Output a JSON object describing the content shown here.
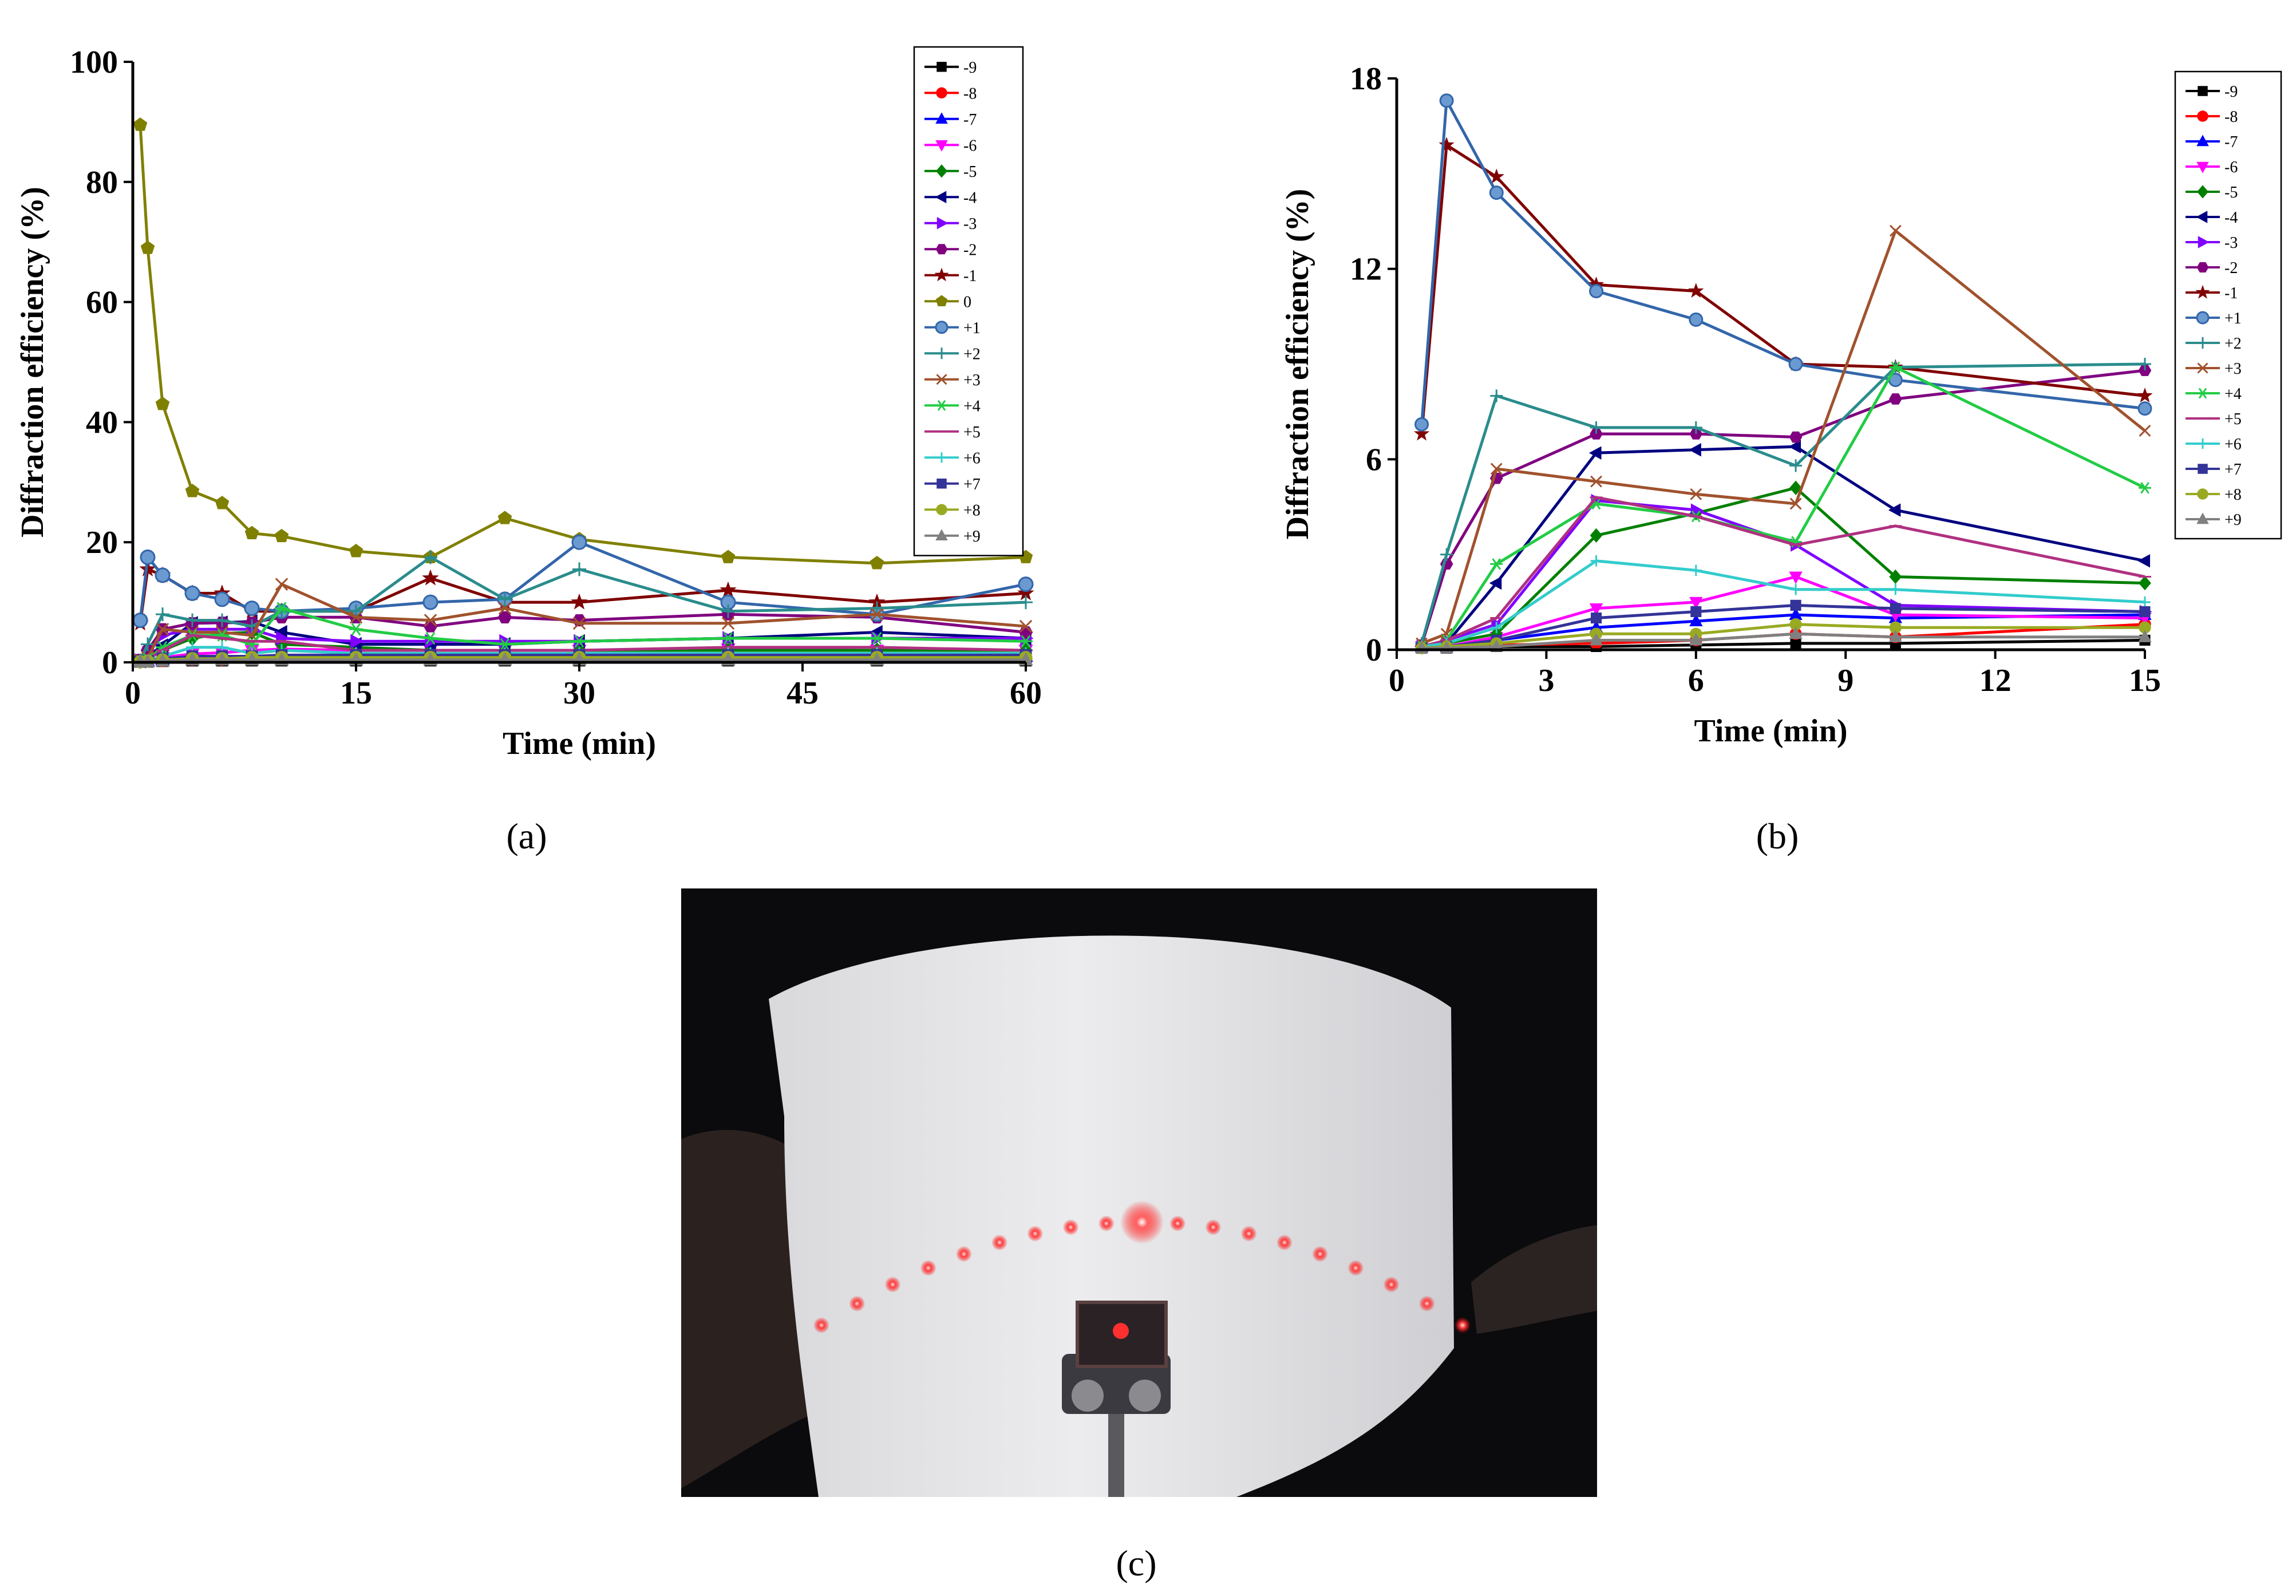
{
  "chart_data": [
    {
      "id": "a",
      "type": "line",
      "panel_label": "(a)",
      "xlabel": "Time (min)",
      "ylabel": "Diffraction efficiency (%)",
      "xlim": [
        0,
        60
      ],
      "ylim": [
        0,
        100
      ],
      "xticks": [
        0,
        15,
        30,
        45,
        60
      ],
      "yticks": [
        0,
        20,
        40,
        60,
        80,
        100
      ],
      "legend_position": "top-right",
      "grid": false,
      "x": [
        0.5,
        1,
        2,
        4,
        6,
        8,
        10,
        15,
        20,
        25,
        30,
        40,
        50,
        60
      ],
      "series": [
        {
          "name": "-9",
          "color": "#000000",
          "marker": "square",
          "values": [
            0.1,
            0.1,
            0.2,
            0.3,
            0.3,
            0.3,
            0.3,
            0.3,
            0.3,
            0.3,
            0.3,
            0.3,
            0.3,
            0.3
          ]
        },
        {
          "name": "-8",
          "color": "#ff0000",
          "marker": "circle",
          "values": [
            0.1,
            0.2,
            0.3,
            0.5,
            0.5,
            0.6,
            0.6,
            0.6,
            0.6,
            0.6,
            0.6,
            0.6,
            0.6,
            0.6
          ]
        },
        {
          "name": "-7",
          "color": "#0000ff",
          "marker": "triangle-up",
          "values": [
            0.1,
            0.3,
            0.5,
            0.8,
            0.9,
            1.0,
            1.0,
            1.0,
            1.0,
            1.0,
            1.0,
            1.0,
            1.0,
            1.0
          ]
        },
        {
          "name": "-6",
          "color": "#ff00ff",
          "marker": "triangle-down",
          "values": [
            0.2,
            0.4,
            0.8,
            1.4,
            1.6,
            2.0,
            2.2,
            2.0,
            2.0,
            2.0,
            2.0,
            2.2,
            2.0,
            2.0
          ]
        },
        {
          "name": "-5",
          "color": "#008000",
          "marker": "diamond",
          "values": [
            0.2,
            0.8,
            2.0,
            4.0,
            4.8,
            5.0,
            3.0,
            2.5,
            2.0,
            2.0,
            2.0,
            2.0,
            2.0,
            2.0
          ]
        },
        {
          "name": "-4",
          "color": "#000080",
          "marker": "triangle-left",
          "values": [
            0.2,
            1.0,
            2.8,
            6.5,
            6.6,
            6.8,
            5.0,
            3.0,
            3.0,
            3.0,
            3.5,
            4.0,
            5.0,
            4.0
          ]
        },
        {
          "name": "-3",
          "color": "#8000ff",
          "marker": "triangle-right",
          "values": [
            0.3,
            1.5,
            4.5,
            5.5,
            5.5,
            5.5,
            4.0,
            3.5,
            3.5,
            3.5,
            3.5,
            4.0,
            4.0,
            4.0
          ]
        },
        {
          "name": "-2",
          "color": "#800080",
          "marker": "hexagon",
          "values": [
            0.4,
            2.0,
            5.5,
            6.5,
            6.6,
            6.6,
            7.5,
            7.5,
            6.0,
            7.5,
            7.0,
            8.0,
            7.5,
            5.0
          ]
        },
        {
          "name": "-1",
          "color": "#800000",
          "marker": "star",
          "values": [
            6.5,
            15.5,
            14.5,
            11.5,
            11.5,
            8.5,
            8.5,
            8.5,
            14.0,
            10.0,
            10.0,
            12.0,
            10.0,
            11.5
          ]
        },
        {
          "name": "0",
          "color": "#808000",
          "marker": "pentagon",
          "values": [
            89.5,
            69.0,
            43.0,
            28.5,
            26.5,
            21.5,
            21.0,
            18.5,
            17.5,
            24.0,
            20.5,
            17.5,
            16.5,
            17.5
          ]
        },
        {
          "name": "+1",
          "color": "#3366aa",
          "marker": "sphere",
          "values": [
            7.0,
            17.5,
            14.5,
            11.5,
            10.5,
            9.0,
            8.5,
            9.0,
            10.0,
            10.5,
            20.0,
            10.0,
            8.0,
            13.0
          ]
        },
        {
          "name": "+2",
          "color": "#2a8c8c",
          "marker": "plus",
          "values": [
            0.3,
            3.0,
            8.0,
            7.0,
            7.0,
            6.0,
            8.5,
            8.5,
            17.5,
            10.5,
            15.5,
            8.5,
            9.0,
            10.0
          ]
        },
        {
          "name": "+3",
          "color": "#a0522d",
          "marker": "x",
          "values": [
            0.3,
            0.8,
            5.5,
            5.0,
            5.0,
            4.5,
            13.0,
            7.5,
            7.0,
            9.0,
            6.5,
            6.5,
            8.0,
            6.0
          ]
        },
        {
          "name": "+4",
          "color": "#22cc44",
          "marker": "asterisk",
          "values": [
            0.2,
            0.5,
            2.5,
            4.5,
            4.5,
            3.0,
            9.0,
            5.5,
            4.0,
            3.0,
            3.5,
            4.0,
            4.0,
            3.5
          ]
        },
        {
          "name": "+5",
          "color": "#b03080",
          "marker": "dash",
          "values": [
            0.2,
            0.5,
            2.0,
            4.5,
            4.0,
            3.5,
            3.5,
            2.0,
            2.0,
            2.0,
            2.0,
            2.5,
            2.5,
            2.0
          ]
        },
        {
          "name": "+6",
          "color": "#33cccc",
          "marker": "cross",
          "values": [
            0.1,
            0.3,
            1.0,
            2.5,
            2.5,
            1.5,
            2.0,
            1.5,
            1.5,
            1.5,
            1.5,
            1.5,
            1.5,
            1.5
          ]
        },
        {
          "name": "+7",
          "color": "#333399",
          "marker": "square",
          "values": [
            0.1,
            0.2,
            0.6,
            1.0,
            1.0,
            1.0,
            1.2,
            1.2,
            1.2,
            1.2,
            1.2,
            1.2,
            1.2,
            1.2
          ]
        },
        {
          "name": "+8",
          "color": "#99aa22",
          "marker": "circle",
          "values": [
            0.1,
            0.2,
            0.4,
            0.6,
            0.6,
            0.8,
            0.8,
            0.8,
            0.8,
            0.8,
            0.8,
            0.8,
            0.8,
            0.8
          ]
        },
        {
          "name": "+9",
          "color": "#808080",
          "marker": "triangle-up",
          "values": [
            0.1,
            0.1,
            0.2,
            0.4,
            0.4,
            0.4,
            0.4,
            0.4,
            0.4,
            0.4,
            0.4,
            0.4,
            0.4,
            0.4
          ]
        }
      ]
    },
    {
      "id": "b",
      "type": "line",
      "panel_label": "(b)",
      "xlabel": "Time (min)",
      "ylabel": "Diffraction efficiency (%)",
      "xlim": [
        0,
        15
      ],
      "ylim": [
        0,
        18
      ],
      "xticks": [
        0,
        3,
        6,
        9,
        12,
        15
      ],
      "yticks": [
        0,
        6,
        12,
        18
      ],
      "legend_position": "top-right",
      "grid": false,
      "x": [
        0.5,
        1,
        2,
        4,
        6,
        8,
        10,
        15
      ],
      "series": [
        {
          "name": "-9",
          "color": "#000000",
          "marker": "square",
          "values": [
            0.05,
            0.05,
            0.1,
            0.1,
            0.15,
            0.2,
            0.2,
            0.3
          ]
        },
        {
          "name": "-8",
          "color": "#ff0000",
          "marker": "circle",
          "values": [
            0.05,
            0.1,
            0.15,
            0.2,
            0.3,
            0.5,
            0.4,
            0.8
          ]
        },
        {
          "name": "-7",
          "color": "#0000ff",
          "marker": "triangle-up",
          "values": [
            0.1,
            0.1,
            0.3,
            0.7,
            0.9,
            1.1,
            1.0,
            1.1
          ]
        },
        {
          "name": "-6",
          "color": "#ff00ff",
          "marker": "triangle-down",
          "values": [
            0.1,
            0.1,
            0.4,
            1.3,
            1.5,
            2.3,
            1.1,
            1.0
          ]
        },
        {
          "name": "-5",
          "color": "#008000",
          "marker": "diamond",
          "values": [
            0.1,
            0.2,
            0.5,
            3.6,
            4.3,
            5.1,
            2.3,
            2.1
          ]
        },
        {
          "name": "-4",
          "color": "#000080",
          "marker": "triangle-left",
          "values": [
            0.1,
            0.2,
            2.1,
            6.2,
            6.3,
            6.4,
            4.4,
            2.8
          ]
        },
        {
          "name": "-3",
          "color": "#8000ff",
          "marker": "triangle-right",
          "values": [
            0.1,
            0.3,
            0.8,
            4.7,
            4.4,
            3.3,
            1.4,
            1.2
          ]
        },
        {
          "name": "-2",
          "color": "#800080",
          "marker": "hexagon",
          "values": [
            0.15,
            2.7,
            5.4,
            6.8,
            6.8,
            6.7,
            7.9,
            8.8
          ]
        },
        {
          "name": "-1",
          "color": "#800000",
          "marker": "star",
          "values": [
            6.8,
            15.9,
            14.9,
            11.5,
            11.3,
            9.0,
            8.9,
            8.0
          ]
        },
        {
          "name": "+1",
          "color": "#3366aa",
          "marker": "sphere",
          "values": [
            7.1,
            17.3,
            14.4,
            11.3,
            10.4,
            9.0,
            8.5,
            7.6
          ]
        },
        {
          "name": "+2",
          "color": "#2a8c8c",
          "marker": "plus",
          "values": [
            0.2,
            3.0,
            8.0,
            7.0,
            7.0,
            5.8,
            8.9,
            9.0
          ]
        },
        {
          "name": "+3",
          "color": "#a0522d",
          "marker": "x",
          "values": [
            0.2,
            0.5,
            5.7,
            5.3,
            4.9,
            4.6,
            13.2,
            6.9
          ]
        },
        {
          "name": "+4",
          "color": "#22cc44",
          "marker": "asterisk",
          "values": [
            0.1,
            0.3,
            2.7,
            4.6,
            4.2,
            3.4,
            8.9,
            5.1
          ]
        },
        {
          "name": "+5",
          "color": "#b03080",
          "marker": "dash",
          "values": [
            0.1,
            0.3,
            1.0,
            4.8,
            4.2,
            3.3,
            3.9,
            2.3
          ]
        },
        {
          "name": "+6",
          "color": "#33cccc",
          "marker": "cross",
          "values": [
            0.1,
            0.2,
            0.7,
            2.8,
            2.5,
            1.9,
            1.9,
            1.5
          ]
        },
        {
          "name": "+7",
          "color": "#333399",
          "marker": "square",
          "values": [
            0.05,
            0.1,
            0.3,
            1.0,
            1.2,
            1.4,
            1.3,
            1.2
          ]
        },
        {
          "name": "+8",
          "color": "#99aa22",
          "marker": "circle",
          "values": [
            0.05,
            0.1,
            0.2,
            0.5,
            0.5,
            0.8,
            0.7,
            0.7
          ]
        },
        {
          "name": "+9",
          "color": "#808080",
          "marker": "triangle-up",
          "values": [
            0.05,
            0.05,
            0.1,
            0.3,
            0.3,
            0.5,
            0.4,
            0.4
          ]
        }
      ]
    }
  ],
  "photo": {
    "panel_label": "(c)",
    "spot_count": 19
  }
}
